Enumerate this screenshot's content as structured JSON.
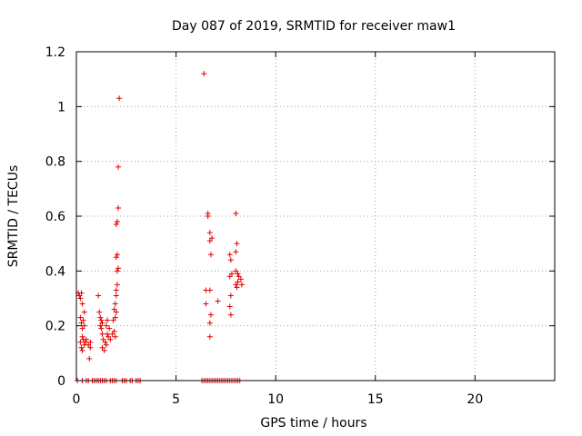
{
  "chart_data": {
    "type": "scatter",
    "title": "Day 087 of 2019, SRMTID for receiver maw1",
    "xlabel": "GPS time / hours",
    "ylabel": "SRMTID / TECUs",
    "xlim": [
      0,
      24
    ],
    "ylim": [
      0,
      1.2
    ],
    "xticks": [
      0,
      5,
      10,
      15,
      20
    ],
    "yticks": [
      0,
      0.2,
      0.4,
      0.6,
      0.8,
      1,
      1.2
    ],
    "ytick_labels": [
      "0",
      "0.2",
      "0.4",
      "0.6",
      "0.8",
      "1",
      "1.2"
    ],
    "grid": true,
    "marker": "plus",
    "color": "#e00000",
    "series": [
      {
        "points": [
          [
            0.1,
            0.32
          ],
          [
            0.15,
            0.31
          ],
          [
            0.2,
            0.3
          ],
          [
            0.25,
            0.32
          ],
          [
            0.3,
            0.28
          ],
          [
            0.2,
            0.23
          ],
          [
            0.25,
            0.21
          ],
          [
            0.3,
            0.19
          ],
          [
            0.35,
            0.22
          ],
          [
            0.4,
            0.25
          ],
          [
            0.3,
            0.16
          ],
          [
            0.35,
            0.15
          ],
          [
            0.2,
            0.14
          ],
          [
            0.25,
            0.12
          ],
          [
            0.3,
            0.11
          ],
          [
            0.4,
            0.13
          ],
          [
            0.45,
            0.14
          ],
          [
            0.4,
            0.2
          ],
          [
            0.5,
            0.15
          ],
          [
            0.6,
            0.13
          ],
          [
            0.7,
            0.12
          ],
          [
            0.65,
            0.08
          ],
          [
            0.7,
            0.14
          ],
          [
            1.1,
            0.31
          ],
          [
            1.15,
            0.25
          ],
          [
            1.2,
            0.23
          ],
          [
            1.25,
            0.22
          ],
          [
            1.3,
            0.21
          ],
          [
            1.2,
            0.2
          ],
          [
            1.25,
            0.19
          ],
          [
            1.3,
            0.17
          ],
          [
            1.35,
            0.15
          ],
          [
            1.3,
            0.12
          ],
          [
            1.4,
            0.11
          ],
          [
            1.45,
            0.14
          ],
          [
            1.5,
            0.13
          ],
          [
            1.55,
            0.17
          ],
          [
            1.6,
            0.16
          ],
          [
            1.5,
            0.2
          ],
          [
            1.55,
            0.22
          ],
          [
            1.65,
            0.19
          ],
          [
            1.7,
            0.15
          ],
          [
            1.8,
            0.17
          ],
          [
            1.85,
            0.22
          ],
          [
            1.9,
            0.26
          ],
          [
            1.95,
            0.28
          ],
          [
            1.9,
            0.18
          ],
          [
            2.0,
            0.31
          ],
          [
            2.0,
            0.33
          ],
          [
            2.05,
            0.35
          ],
          [
            2.05,
            0.4
          ],
          [
            2.1,
            0.41
          ],
          [
            2.0,
            0.45
          ],
          [
            2.05,
            0.46
          ],
          [
            2.0,
            0.57
          ],
          [
            2.05,
            0.58
          ],
          [
            2.1,
            0.63
          ],
          [
            2.1,
            0.78
          ],
          [
            2.15,
            1.03
          ],
          [
            1.95,
            0.23
          ],
          [
            2.0,
            0.25
          ],
          [
            1.95,
            0.16
          ],
          [
            6.4,
            1.12
          ],
          [
            6.5,
            0.33
          ],
          [
            6.5,
            0.28
          ],
          [
            6.6,
            0.61
          ],
          [
            6.6,
            0.6
          ],
          [
            6.7,
            0.54
          ],
          [
            6.7,
            0.51
          ],
          [
            6.8,
            0.52
          ],
          [
            6.75,
            0.46
          ],
          [
            6.7,
            0.33
          ],
          [
            6.75,
            0.24
          ],
          [
            6.7,
            0.21
          ],
          [
            6.7,
            0.16
          ],
          [
            7.1,
            0.29
          ],
          [
            7.7,
            0.46
          ],
          [
            7.75,
            0.44
          ],
          [
            7.7,
            0.38
          ],
          [
            7.8,
            0.39
          ],
          [
            7.75,
            0.31
          ],
          [
            7.7,
            0.27
          ],
          [
            7.75,
            0.24
          ],
          [
            8.0,
            0.61
          ],
          [
            8.0,
            0.47
          ],
          [
            8.05,
            0.5
          ],
          [
            8.0,
            0.4
          ],
          [
            8.1,
            0.39
          ],
          [
            8.15,
            0.38
          ],
          [
            8.0,
            0.35
          ],
          [
            8.05,
            0.34
          ],
          [
            8.1,
            0.36
          ],
          [
            8.25,
            0.37
          ],
          [
            8.3,
            0.35
          ]
        ],
        "zero_points_x": [
          0.05,
          0.3,
          0.5,
          0.6,
          0.8,
          0.9,
          1.0,
          1.1,
          1.2,
          1.3,
          1.4,
          1.5,
          1.7,
          1.8,
          1.9,
          2.0,
          2.3,
          2.4,
          2.5,
          2.7,
          2.8,
          3.0,
          3.1,
          3.2,
          6.3,
          6.4,
          6.5,
          6.6,
          6.7,
          6.8,
          6.9,
          7.0,
          7.1,
          7.2,
          7.3,
          7.4,
          7.5,
          7.6,
          7.7,
          7.8,
          7.9,
          8.0,
          8.1,
          8.2
        ]
      }
    ]
  }
}
